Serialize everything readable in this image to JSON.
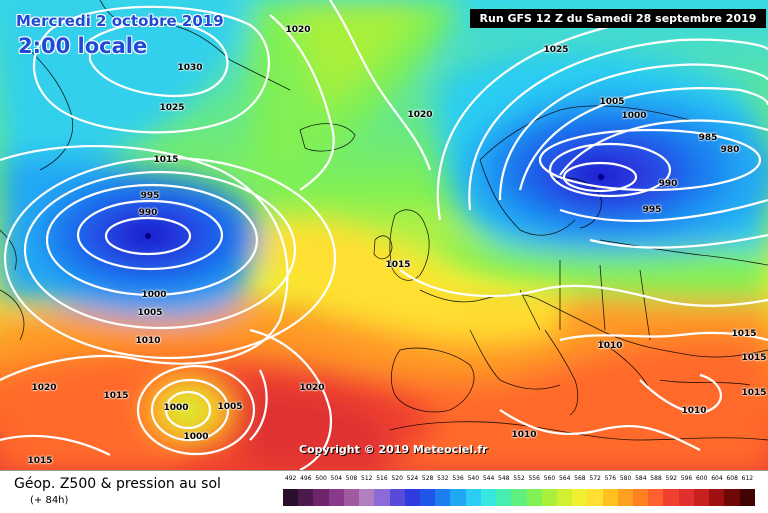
{
  "header": {
    "date": "Mercredi 2 octobre 2019",
    "time": "2:00 locale",
    "run": "Run GFS 12 Z du Samedi 28 septembre 2019"
  },
  "copyright": "Copyright © 2019 Meteociel.fr",
  "footer": {
    "title": "Géop. Z500 & pression au sol",
    "subtitle": "(+ 84h)"
  },
  "isobar_labels": [
    {
      "text": "1020"
    },
    {
      "text": "1030"
    },
    {
      "text": "1025"
    },
    {
      "text": "1015"
    },
    {
      "text": "995"
    },
    {
      "text": "990"
    },
    {
      "text": "1000"
    },
    {
      "text": "1005"
    },
    {
      "text": "1010"
    },
    {
      "text": "1025"
    },
    {
      "text": "1020"
    },
    {
      "text": "1005"
    },
    {
      "text": "1000"
    },
    {
      "text": "985"
    },
    {
      "text": "980"
    },
    {
      "text": "990"
    },
    {
      "text": "995"
    },
    {
      "text": "1015"
    },
    {
      "text": "1010"
    },
    {
      "text": "1015"
    },
    {
      "text": "1015"
    },
    {
      "text": "1020"
    },
    {
      "text": "1015"
    },
    {
      "text": "1010"
    },
    {
      "text": "1010"
    },
    {
      "text": "1020"
    },
    {
      "text": "1015"
    },
    {
      "text": "1015"
    },
    {
      "text": "1000"
    },
    {
      "text": "1005"
    },
    {
      "text": "1000"
    }
  ],
  "legend": {
    "values": [
      "492",
      "496",
      "500",
      "504",
      "508",
      "512",
      "516",
      "520",
      "524",
      "528",
      "532",
      "536",
      "540",
      "544",
      "548",
      "552",
      "556",
      "560",
      "564",
      "568",
      "572",
      "576",
      "580",
      "584",
      "588",
      "592",
      "596",
      "600",
      "604",
      "608",
      "612"
    ],
    "colors": [
      "#2a0f2a",
      "#4c1a4c",
      "#6e256e",
      "#8a3a8a",
      "#a05aa0",
      "#b080c0",
      "#8c6ad8",
      "#5a4ad8",
      "#2f3ae0",
      "#1f56e8",
      "#1d7ef0",
      "#20a8f4",
      "#2ccdf2",
      "#38e6e0",
      "#45efb0",
      "#5ff080",
      "#80f055",
      "#a8f03a",
      "#d0f030",
      "#f0f030",
      "#ffe030",
      "#ffc020",
      "#ffa020",
      "#ff8020",
      "#ff6030",
      "#f04030",
      "#e03030",
      "#c82020",
      "#a01010",
      "#700808",
      "#400404"
    ]
  }
}
